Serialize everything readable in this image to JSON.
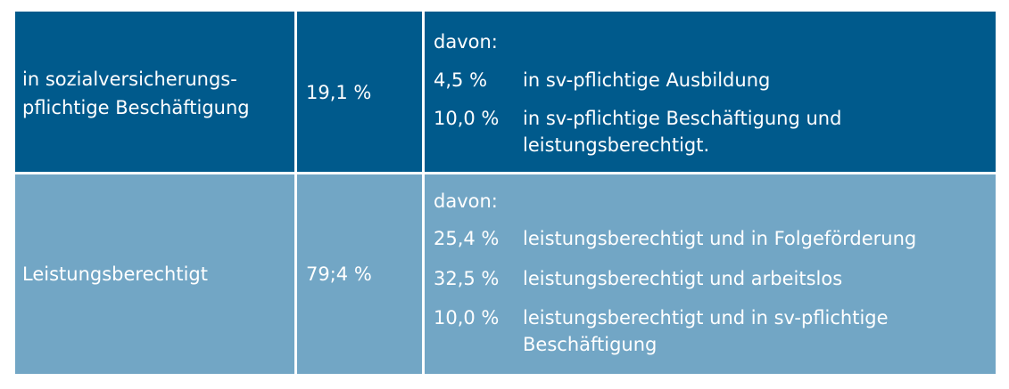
{
  "rows": [
    {
      "category": "in sozialversicherungs-\npflichtige Beschäftigung",
      "category_line1": "in sozialversicherungs-",
      "category_line2": "pflichtige Beschäftigung",
      "share": "19,1 %",
      "davon": "davon:",
      "items": [
        {
          "pct": "4,5 %",
          "desc": "in sv-pflichtige Ausbildung"
        },
        {
          "pct": "10,0 %",
          "desc_line1": "in sv-pflichtige Beschäftigung und",
          "desc_line2": "leistungsberechtigt."
        }
      ]
    },
    {
      "category": "Leistungsberechtigt",
      "share": "79;4 %",
      "davon": "davon:",
      "items": [
        {
          "pct": "25,4 %",
          "desc": "leistungsberechtigt und in Folgeförderung"
        },
        {
          "pct": "32,5 %",
          "desc": "leistungsberechtigt und arbeitslos"
        },
        {
          "pct": "10,0 %",
          "desc_line1": "leistungsberechtigt und in sv-pflichtige",
          "desc_line2": "Beschäftigung"
        }
      ]
    }
  ],
  "colors": {
    "dark": "#005a8c",
    "light": "#72a6c5",
    "text": "#ffffff",
    "separator": "#ffffff"
  }
}
